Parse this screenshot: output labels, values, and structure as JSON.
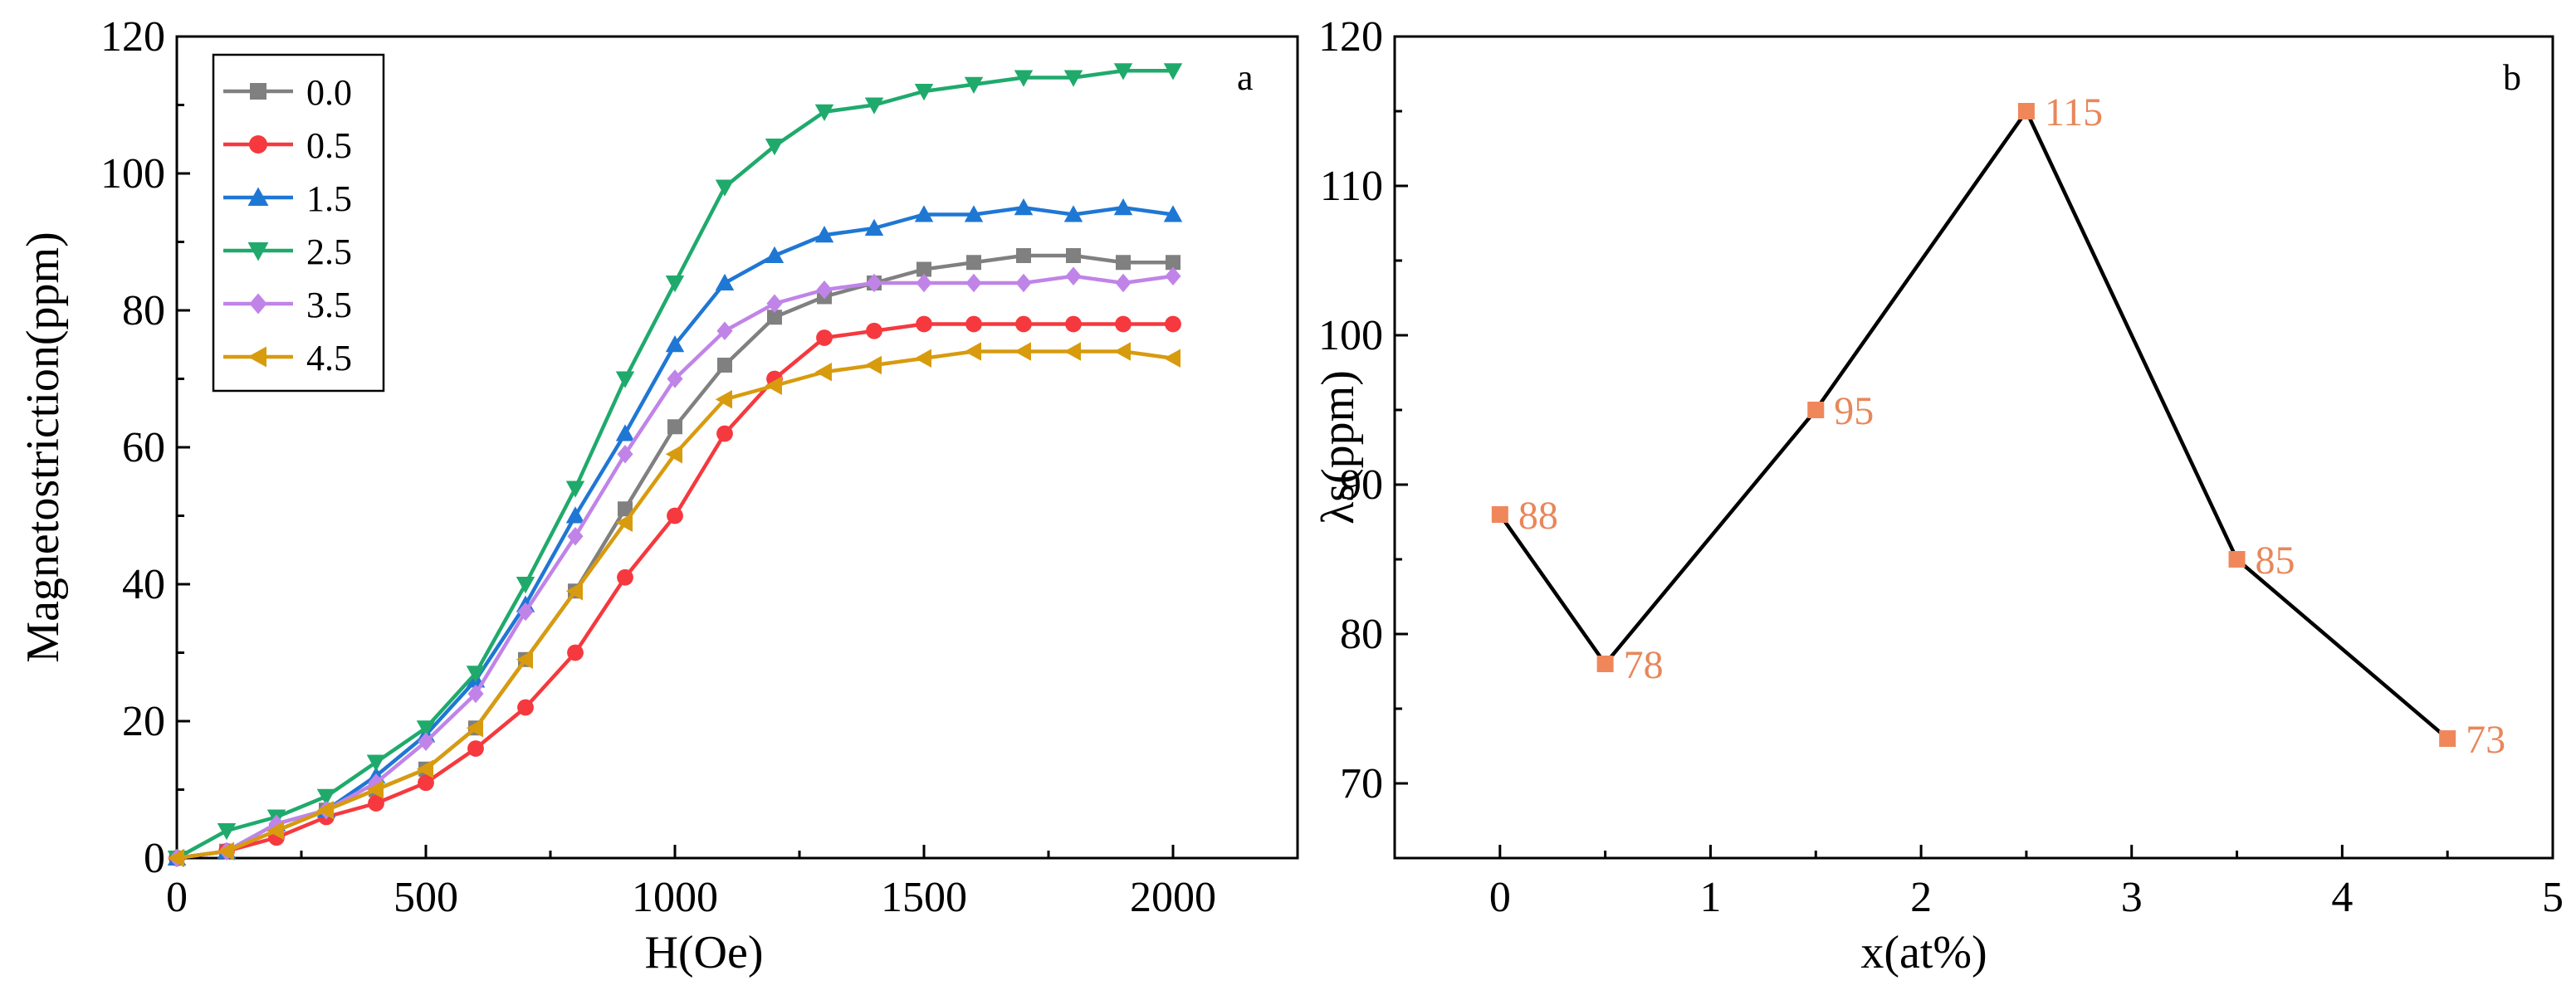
{
  "figure_labels": {
    "panel_a": "a",
    "panel_b": "b"
  },
  "colors": {
    "axis": "#000000",
    "panel_b_marker": "#F0875A",
    "panel_b_label": "#E8875A",
    "panel_b_line": "#000000"
  },
  "chart_data": [
    {
      "type": "line",
      "panel": "a",
      "title": "",
      "xlabel": "H(Oe)",
      "ylabel": "Magnetostriction(ppm)",
      "xlim": [
        0,
        2250
      ],
      "ylim": [
        0,
        120
      ],
      "xticks": [
        0,
        500,
        1000,
        1500,
        2000
      ],
      "yticks": [
        0,
        20,
        40,
        60,
        80,
        100,
        120
      ],
      "legend_position": "top-left",
      "x": [
        0,
        100,
        200,
        300,
        400,
        500,
        600,
        700,
        800,
        900,
        1000,
        1100,
        1200,
        1300,
        1400,
        1500,
        1600,
        1700,
        1800,
        1900,
        2000
      ],
      "series": [
        {
          "name": "0.0",
          "color": "#808080",
          "marker": "square",
          "values": [
            0,
            1,
            4,
            7,
            10,
            13,
            19,
            29,
            39,
            51,
            63,
            72,
            79,
            82,
            84,
            86,
            87,
            88,
            88,
            87,
            87
          ]
        },
        {
          "name": "0.5",
          "color": "#F5393E",
          "marker": "circle",
          "values": [
            0,
            1,
            3,
            6,
            8,
            11,
            16,
            22,
            30,
            41,
            50,
            62,
            70,
            76,
            77,
            78,
            78,
            78,
            78,
            78,
            78
          ]
        },
        {
          "name": "1.5",
          "color": "#1F77D4",
          "marker": "triangle-up",
          "values": [
            0,
            1,
            5,
            7,
            12,
            18,
            26,
            37,
            50,
            62,
            75,
            84,
            88,
            91,
            92,
            94,
            94,
            95,
            94,
            95,
            94
          ]
        },
        {
          "name": "2.5",
          "color": "#1FAA6C",
          "marker": "triangle-down",
          "values": [
            0,
            4,
            6,
            9,
            14,
            19,
            27,
            40,
            54,
            70,
            84,
            98,
            104,
            109,
            110,
            112,
            113,
            114,
            114,
            115,
            115
          ]
        },
        {
          "name": "3.5",
          "color": "#C084E8",
          "marker": "diamond",
          "values": [
            0,
            1,
            5,
            7,
            11,
            17,
            24,
            36,
            47,
            59,
            70,
            77,
            81,
            83,
            84,
            84,
            84,
            84,
            85,
            84,
            85
          ]
        },
        {
          "name": "4.5",
          "color": "#D89B0E",
          "marker": "triangle-left",
          "values": [
            0,
            1,
            4,
            7,
            10,
            13,
            19,
            29,
            39,
            49,
            59,
            67,
            69,
            71,
            72,
            73,
            74,
            74,
            74,
            74,
            73
          ]
        }
      ]
    },
    {
      "type": "line",
      "panel": "b",
      "title": "",
      "xlabel": "x(at%)",
      "ylabel": "λs(ppm)",
      "xlim": [
        -0.5,
        5
      ],
      "ylim": [
        65,
        120
      ],
      "xticks": [
        0,
        1,
        2,
        3,
        4,
        5
      ],
      "yticks": [
        70,
        80,
        90,
        100,
        110,
        120
      ],
      "x": [
        0,
        0.5,
        1.5,
        2.5,
        3.5,
        4.5
      ],
      "values": [
        88,
        78,
        95,
        115,
        85,
        73
      ],
      "data_labels": [
        "88",
        "78",
        "95",
        "115",
        "85",
        "73"
      ]
    }
  ]
}
